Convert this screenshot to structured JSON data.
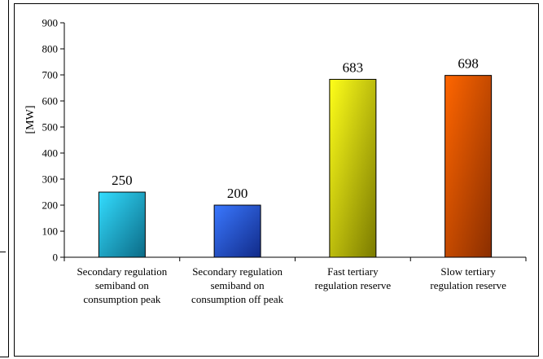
{
  "chart_data": {
    "type": "bar",
    "title": "",
    "xlabel": "",
    "ylabel": "[MW]",
    "ylim": [
      0,
      900
    ],
    "yticks": [
      0,
      100,
      200,
      300,
      400,
      500,
      600,
      700,
      800,
      900
    ],
    "grid": false,
    "legend": "none",
    "categories": [
      [
        "Secondary regulation",
        "semiband on",
        "consumption peak"
      ],
      [
        "Secondary regulation",
        "semiband on",
        "consumption off peak"
      ],
      [
        "Fast tertiary",
        "regulation reserve"
      ],
      [
        "Slow tertiary",
        "regulation reserve"
      ]
    ],
    "values": [
      250,
      200,
      683,
      698
    ],
    "colors": [
      [
        "#33ddff",
        "#0b6a86"
      ],
      [
        "#3a78ff",
        "#112a88"
      ],
      [
        "#ffff1a",
        "#7a7a00"
      ],
      [
        "#ff6600",
        "#8a2e00"
      ]
    ]
  }
}
